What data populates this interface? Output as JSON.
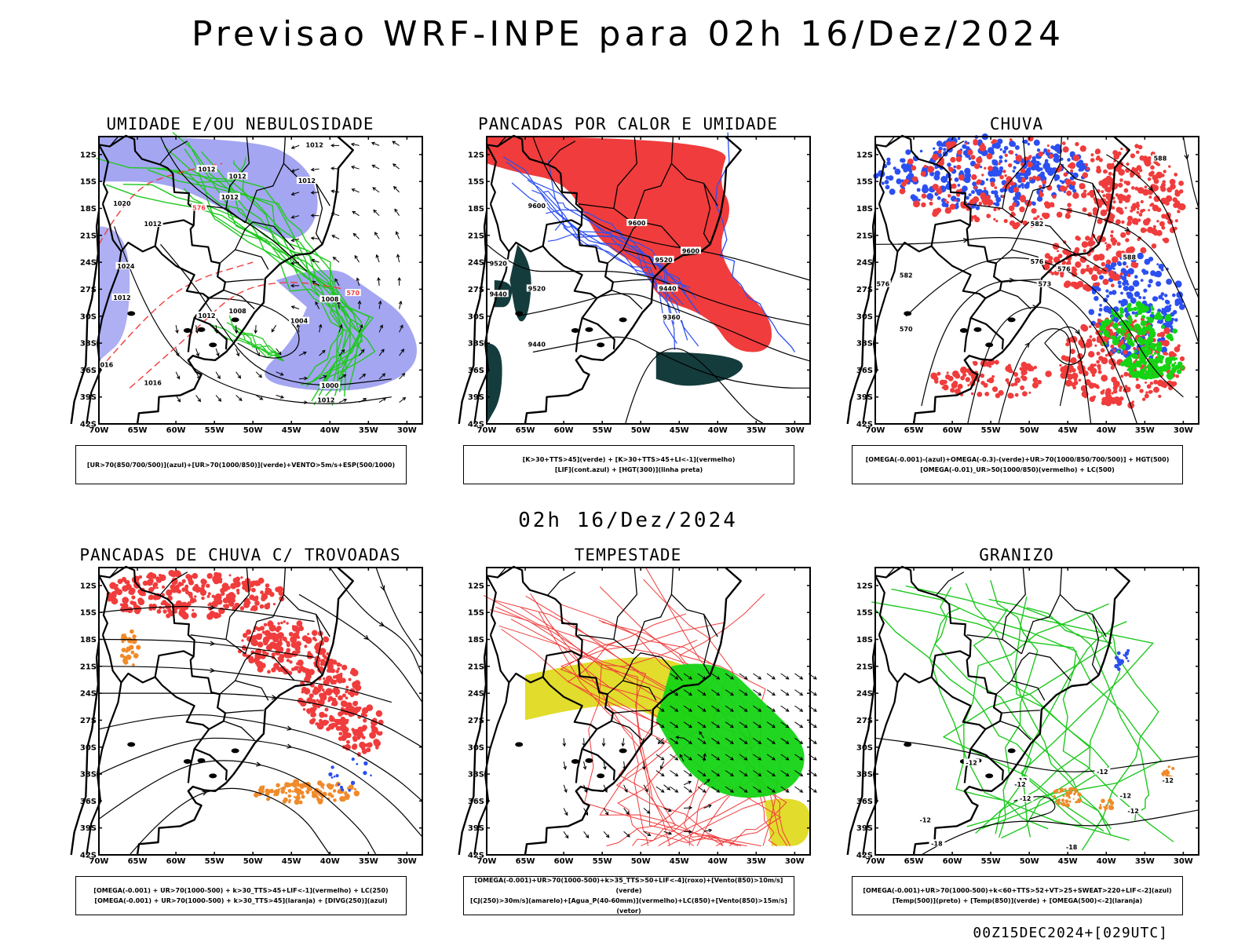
{
  "header": {
    "title": "Previsao WRF-INPE  para 02h 16/Dez/2024",
    "mid_title": "02h 16/Dez/2024",
    "footer": "00Z15DEC2024+[029UTC]"
  },
  "chart_data": {
    "type": "multi-panel weather map",
    "lat_ticks": [
      "12S",
      "15S",
      "18S",
      "21S",
      "24S",
      "27S",
      "30S",
      "33S",
      "36S",
      "39S",
      "42S"
    ],
    "lon_ticks": [
      "70W",
      "65W",
      "60W",
      "55W",
      "50W",
      "45W",
      "40W",
      "35W",
      "30W"
    ],
    "xlim": [
      -70,
      -28
    ],
    "ylim": [
      -42,
      -10
    ],
    "colors": {
      "blue_fill": "#9a9cf0",
      "green_contour": "#1fc91f",
      "red": "#f03c3c",
      "dark_teal": "#153c3c",
      "blue_line": "#2b4ff0",
      "yellow": "#e2dc2c",
      "orange": "#f08a2a",
      "bright_green": "#14d414"
    },
    "panels": [
      {
        "id": "umidade",
        "title": "UMIDADE E/OU NEBULOSIDADE",
        "legend_lines": [
          "[UR>70(850/700/500)](azul)+[UR>70(1000/850)](verde)+VENTO>5m/s+ESP(500/1000)"
        ],
        "contour_labels": [
          {
            "text": "1012",
            "lon": -42,
            "lat": -11
          },
          {
            "text": "1012",
            "lon": -56,
            "lat": -13.7
          },
          {
            "text": "1012",
            "lon": -52,
            "lat": -14.5
          },
          {
            "text": "1012",
            "lon": -43,
            "lat": -15
          },
          {
            "text": "1012",
            "lon": -53,
            "lat": -16.8
          },
          {
            "text": "1012",
            "lon": -63,
            "lat": -19.8
          },
          {
            "text": "1020",
            "lon": -67,
            "lat": -17.5
          },
          {
            "text": "1024",
            "lon": -66.5,
            "lat": -24.5
          },
          {
            "text": "1012",
            "lon": -67,
            "lat": -28
          },
          {
            "text": "1012",
            "lon": -56,
            "lat": -30
          },
          {
            "text": "1008",
            "lon": -52,
            "lat": -29.5
          },
          {
            "text": "1008",
            "lon": -40,
            "lat": -28.2
          },
          {
            "text": "1004",
            "lon": -44,
            "lat": -30.6
          },
          {
            "text": "1000",
            "lon": -40,
            "lat": -37.8
          },
          {
            "text": "1012",
            "lon": -40.5,
            "lat": -39.4
          },
          {
            "text": "1016",
            "lon": -63,
            "lat": -37.5
          },
          {
            "text": "016",
            "lon": -69,
            "lat": -35.5
          },
          {
            "text": "570",
            "lon": -37,
            "lat": -27.5
          },
          {
            "text": "576",
            "lon": -57,
            "lat": -18
          }
        ]
      },
      {
        "id": "pancadas_calor",
        "title": "PANCADAS POR CALOR E UMIDADE",
        "legend_lines": [
          "[K>30+TTS>45](verde) + [K>30+TTS>45+LI<-1](vermelho)",
          "[LIF](cont.azul) + [HGT(300)](linha preta)"
        ],
        "contour_labels": [
          {
            "text": "9600",
            "lon": -63.5,
            "lat": -17.8
          },
          {
            "text": "9600",
            "lon": -50.5,
            "lat": -19.7
          },
          {
            "text": "9600",
            "lon": -43.5,
            "lat": -22.8
          },
          {
            "text": "9520",
            "lon": -47,
            "lat": -23.8
          },
          {
            "text": "9520",
            "lon": -68.5,
            "lat": -24.2
          },
          {
            "text": "9520",
            "lon": -63.5,
            "lat": -27
          },
          {
            "text": "9440",
            "lon": -68.5,
            "lat": -27.6
          },
          {
            "text": "9440",
            "lon": -46.5,
            "lat": -27
          },
          {
            "text": "9360",
            "lon": -46,
            "lat": -30.2
          },
          {
            "text": "9440",
            "lon": -63.5,
            "lat": -33.2
          }
        ]
      },
      {
        "id": "chuva",
        "title": "CHUVA",
        "legend_lines": [
          "[OMEGA(-0.001)-(azul)+OMEGA(-0.3)-(verde)+UR>70(1000/850/700/500)] + HGT(500)",
          "[OMEGA(-0.01)_UR>50(1000/850)(vermelho) + LC(500)"
        ],
        "contour_labels": [
          {
            "text": "588",
            "lon": -33,
            "lat": -12.5
          },
          {
            "text": "582",
            "lon": -49,
            "lat": -19.8
          },
          {
            "text": "576",
            "lon": -49,
            "lat": -24
          },
          {
            "text": "576",
            "lon": -45.5,
            "lat": -24.8
          },
          {
            "text": "588",
            "lon": -37,
            "lat": -23.5
          },
          {
            "text": "582",
            "lon": -66,
            "lat": -25.5
          },
          {
            "text": "573",
            "lon": -48,
            "lat": -26.5
          },
          {
            "text": "570",
            "lon": -66,
            "lat": -31.5
          },
          {
            "text": "576",
            "lon": -69,
            "lat": -26.5
          }
        ]
      },
      {
        "id": "trovoadas",
        "title": "PANCADAS DE CHUVA C/ TROVOADAS",
        "legend_lines": [
          "[OMEGA(-0.001) + UR>70(1000-500) + k>30_TTS>45+LIF<-1](vermelho) + LC(250)",
          "[OMEGA(-0.001) + UR>70(1000-500) + k>30_TTS>45](laranja) + [DIVG(250)](azul)"
        ],
        "contour_labels": []
      },
      {
        "id": "tempestade",
        "title": "TEMPESTADE",
        "legend_lines": [
          "[OMEGA(-0.001)+UR>70(1000-500)+k>35_TTS>50+LIF<-4](roxo)+[Vento(850)>10m/s](verde)",
          "[CJ(250)>30m/s](amarelo)+[Agua_P(40-60mm)](vermelho)+LC(850)+[Vento(850)>15m/s](vetor)"
        ],
        "contour_labels": []
      },
      {
        "id": "granizo",
        "title": "GRANIZO",
        "legend_lines": [
          "[OMEGA(-0.001)+UR>70(1000-500)+k<60+TTS>52+VT>25+SWEAT>220+LIF<-2](azul)",
          "[Temp(500)](preto) + [Temp(850)](verde) + [OMEGA(500)<-2](laranja)"
        ],
        "contour_labels": [
          {
            "text": "-12",
            "lon": -57.5,
            "lat": -31.8
          },
          {
            "text": "-12",
            "lon": -51,
            "lat": -33.8
          },
          {
            "text": "-12",
            "lon": -40.5,
            "lat": -32.8
          },
          {
            "text": "-12",
            "lon": -50.5,
            "lat": -35.8
          },
          {
            "text": "-12",
            "lon": -51.2,
            "lat": -34.2
          },
          {
            "text": "-12",
            "lon": -37.5,
            "lat": -35.5
          },
          {
            "text": "-18",
            "lon": -62,
            "lat": -40.8
          },
          {
            "text": "-18",
            "lon": -44.5,
            "lat": -41.2
          },
          {
            "text": "-12",
            "lon": -63.5,
            "lat": -38.2
          },
          {
            "text": "-12",
            "lon": -36.5,
            "lat": -37.2
          },
          {
            "text": "-12",
            "lon": -32,
            "lat": -33.8
          }
        ]
      }
    ]
  }
}
